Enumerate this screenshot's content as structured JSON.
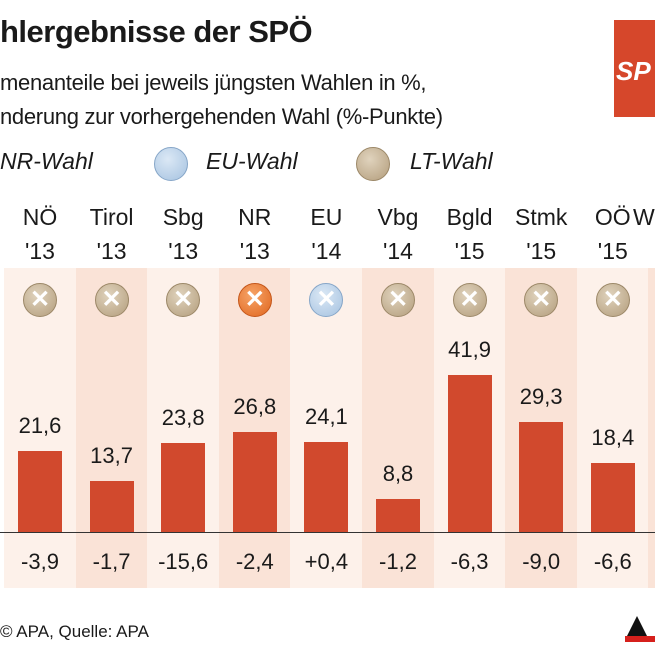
{
  "title": "hlergebnisse der SPÖ",
  "subtitle_line1": "menanteile bei jeweils jüngsten Wahlen in %,",
  "subtitle_line2": "nderung zur vorhergehenden Wahl (%-Punkte)",
  "logo_text": "SP",
  "legend": [
    {
      "label": "NR-Wahl",
      "type": "nr",
      "color": "#e0661e"
    },
    {
      "label": "EU-Wahl",
      "type": "eu",
      "color": "#a5c2e0"
    },
    {
      "label": "LT-Wahl",
      "type": "lt",
      "color": "#b39d7c"
    }
  ],
  "source": "© APA, Quelle: APA",
  "chart_data": {
    "type": "bar",
    "categories": [
      "NÖ '13",
      "Tirol '13",
      "Sbg '13",
      "NR '13",
      "EU '14",
      "Vbg '14",
      "Bgld '15",
      "Stmk '15",
      "OÖ '15"
    ],
    "labels": [
      [
        "NÖ",
        "'13"
      ],
      [
        "Tirol",
        "'13"
      ],
      [
        "Sbg",
        "'13"
      ],
      [
        "NR",
        "'13"
      ],
      [
        "EU",
        "'14"
      ],
      [
        "Vbg",
        "'14"
      ],
      [
        "Bgld",
        "'15"
      ],
      [
        "Stmk",
        "'15"
      ],
      [
        "OÖ",
        "'15"
      ]
    ],
    "election_type": [
      "lt",
      "lt",
      "lt",
      "nr",
      "eu",
      "lt",
      "lt",
      "lt",
      "lt"
    ],
    "values": [
      21.6,
      13.7,
      23.8,
      26.8,
      24.1,
      8.8,
      41.9,
      29.3,
      18.4
    ],
    "value_labels": [
      "21,6",
      "13,7",
      "23,8",
      "26,8",
      "24,1",
      "8,8",
      "41,9",
      "29,3",
      "18,4"
    ],
    "changes": [
      "-3,9",
      "-1,7",
      "-15,6",
      "-2,4",
      "+0,4",
      "-1,2",
      "-6,3",
      "-9,0",
      "-6,6"
    ],
    "bar_color": "#d1492d",
    "ylim": [
      0,
      45
    ],
    "grid": false
  }
}
